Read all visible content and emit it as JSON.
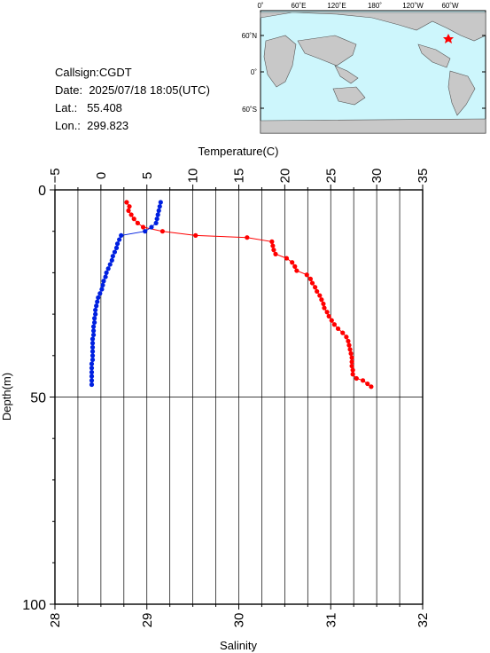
{
  "station": {
    "callsign_label": "Callsign:",
    "callsign": "CGDT",
    "date_label": "Date:",
    "date": "2025/07/18 18:05(UTC)",
    "lat_label": "Lat.:",
    "lat": "55.408",
    "lon_label": "Lon.:",
    "lon": "299.823"
  },
  "map": {
    "lon_labels": [
      "0˚",
      "60˚E",
      "120˚E",
      "180˚",
      "120˚W",
      "60˚W"
    ],
    "lat_labels": [
      "60˚N",
      "0˚",
      "60˚S"
    ],
    "ocean_color": "#cdf6fc",
    "land_color": "#c8c8c8",
    "marker_color": "#ff0000"
  },
  "chart_data": {
    "type": "scatter",
    "ylabel": "Depth(m)",
    "y_ticks": [
      "0",
      "50",
      "100"
    ],
    "ylim": [
      0,
      100
    ],
    "top_axis": {
      "label": "Temperature(C)",
      "ticks": [
        "−5",
        "0",
        "5",
        "10",
        "15",
        "20",
        "25",
        "30",
        "35"
      ],
      "range": [
        -5,
        35
      ]
    },
    "bottom_axis": {
      "label": "Salinity",
      "ticks": [
        "28",
        "29",
        "30",
        "31",
        "32"
      ],
      "range": [
        28,
        32
      ]
    },
    "grid": true,
    "series": [
      {
        "color": "#ff0000",
        "axis": "temperature",
        "points": [
          [
            2.8,
            3
          ],
          [
            3.1,
            4
          ],
          [
            3.0,
            5
          ],
          [
            3.3,
            6
          ],
          [
            3.6,
            7
          ],
          [
            4.0,
            8
          ],
          [
            4.6,
            9
          ],
          [
            6.7,
            10
          ],
          [
            10.3,
            11
          ],
          [
            15.9,
            11.5
          ],
          [
            18.6,
            12.5
          ],
          [
            18.7,
            13.5
          ],
          [
            18.8,
            14.5
          ],
          [
            19.0,
            15.5
          ],
          [
            20.2,
            16.5
          ],
          [
            20.8,
            17.5
          ],
          [
            21.1,
            18.5
          ],
          [
            21.3,
            19.5
          ],
          [
            22.4,
            20.5
          ],
          [
            22.8,
            21.5
          ],
          [
            23.0,
            22.5
          ],
          [
            23.3,
            23.5
          ],
          [
            23.5,
            24.5
          ],
          [
            23.8,
            25.5
          ],
          [
            24.0,
            26.5
          ],
          [
            24.2,
            27.5
          ],
          [
            24.3,
            28.5
          ],
          [
            24.6,
            29.5
          ],
          [
            24.8,
            30.5
          ],
          [
            25.1,
            31.5
          ],
          [
            25.4,
            32.5
          ],
          [
            25.8,
            33.5
          ],
          [
            26.3,
            34.5
          ],
          [
            26.7,
            35.5
          ],
          [
            26.9,
            36.5
          ],
          [
            27.0,
            37.5
          ],
          [
            27.1,
            38.5
          ],
          [
            27.2,
            39.5
          ],
          [
            27.3,
            40.5
          ],
          [
            27.3,
            41.5
          ],
          [
            27.3,
            42.5
          ],
          [
            27.4,
            43.5
          ],
          [
            27.4,
            44.5
          ],
          [
            27.8,
            45.5
          ],
          [
            28.5,
            46
          ],
          [
            29.0,
            46.8
          ],
          [
            29.4,
            47.5
          ]
        ]
      },
      {
        "color": "#0020e0",
        "axis": "salinity",
        "points": [
          [
            29.15,
            3
          ],
          [
            29.14,
            4
          ],
          [
            29.13,
            5
          ],
          [
            29.12,
            6
          ],
          [
            29.11,
            7
          ],
          [
            29.1,
            8
          ],
          [
            29.05,
            9
          ],
          [
            28.98,
            10
          ],
          [
            28.72,
            11
          ],
          [
            28.7,
            12
          ],
          [
            28.68,
            13
          ],
          [
            28.67,
            14
          ],
          [
            28.65,
            15
          ],
          [
            28.63,
            16
          ],
          [
            28.62,
            17
          ],
          [
            28.6,
            18
          ],
          [
            28.58,
            19
          ],
          [
            28.56,
            20
          ],
          [
            28.55,
            21
          ],
          [
            28.53,
            22
          ],
          [
            28.52,
            23
          ],
          [
            28.51,
            24
          ],
          [
            28.49,
            25
          ],
          [
            28.47,
            26
          ],
          [
            28.46,
            27
          ],
          [
            28.45,
            28
          ],
          [
            28.44,
            29
          ],
          [
            28.44,
            30
          ],
          [
            28.43,
            31
          ],
          [
            28.43,
            32
          ],
          [
            28.42,
            33
          ],
          [
            28.42,
            34
          ],
          [
            28.42,
            35
          ],
          [
            28.41,
            36
          ],
          [
            28.41,
            37
          ],
          [
            28.41,
            38
          ],
          [
            28.41,
            39
          ],
          [
            28.41,
            40
          ],
          [
            28.41,
            41
          ],
          [
            28.4,
            42
          ],
          [
            28.4,
            43
          ],
          [
            28.4,
            44
          ],
          [
            28.4,
            45
          ],
          [
            28.4,
            46
          ],
          [
            28.4,
            47
          ]
        ]
      }
    ]
  }
}
